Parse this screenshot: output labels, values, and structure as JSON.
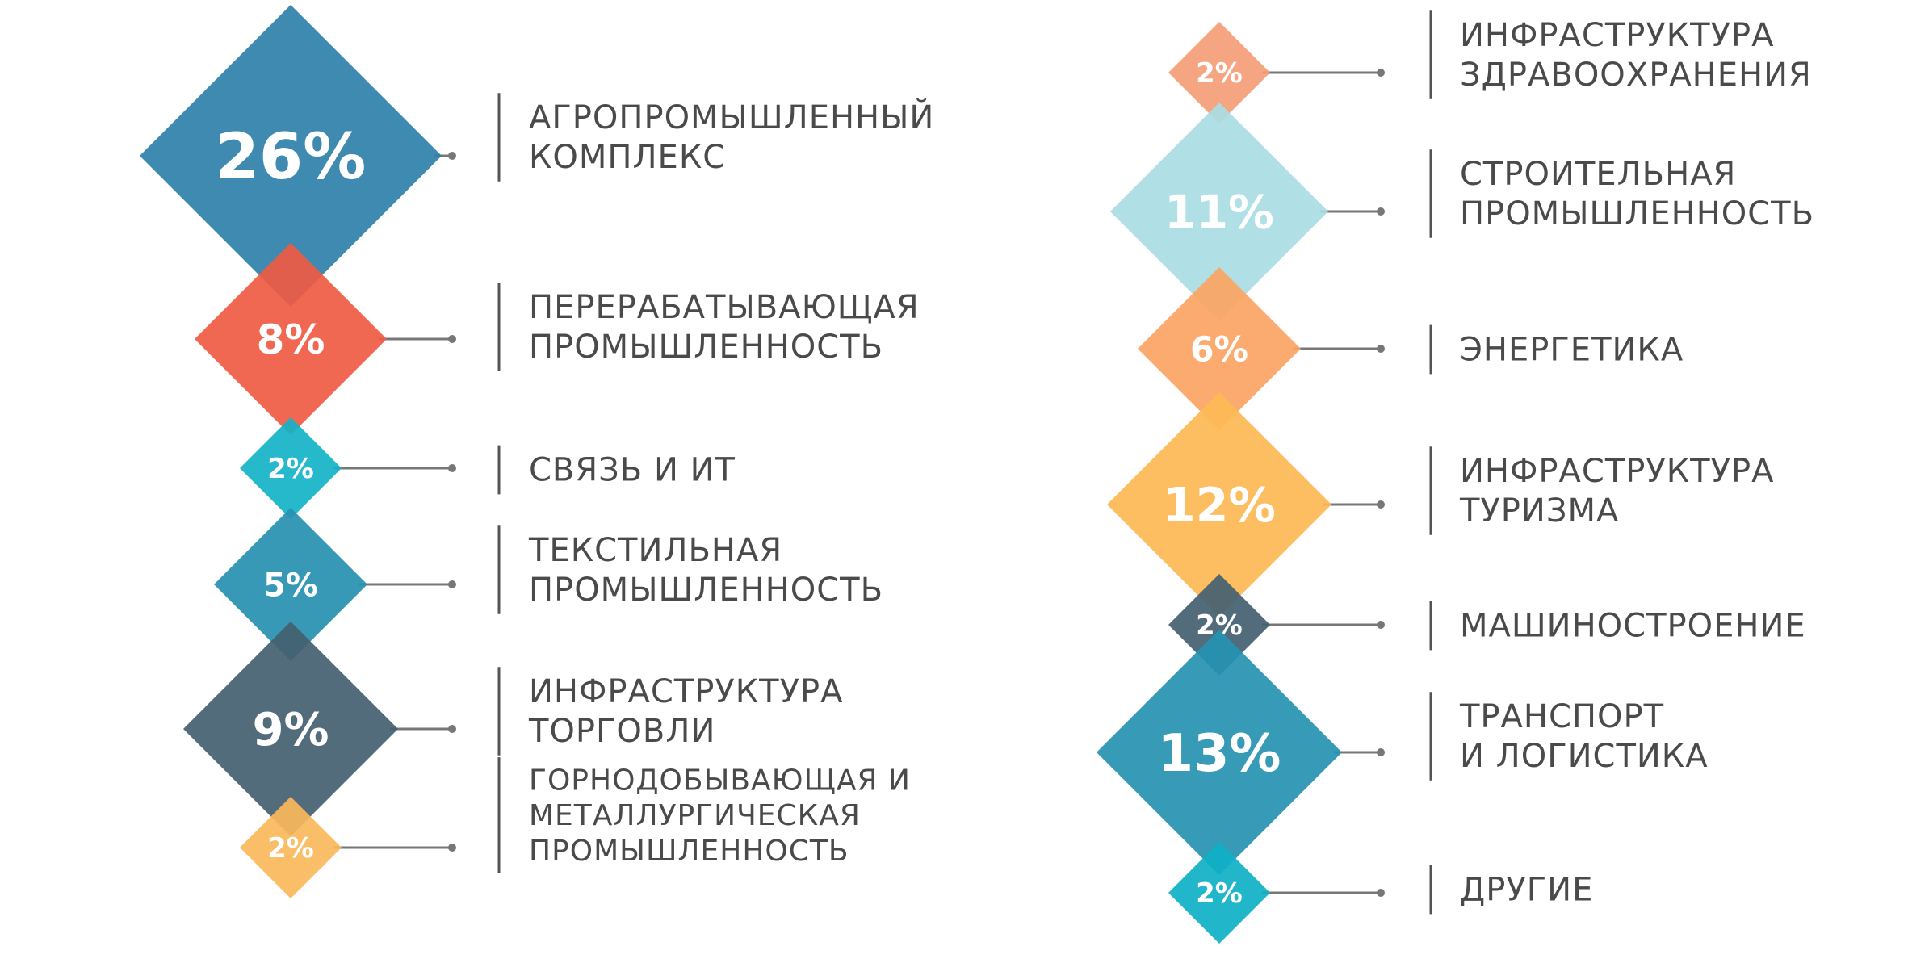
{
  "chart_data": {
    "type": "diamond-infographic",
    "unit": "%",
    "columns": [
      {
        "items": [
          {
            "value": 26,
            "label_lines": [
              "АГРОПРОМЫШЛЕННЫЙ",
              "КОМПЛЕКС"
            ],
            "color": "#2f80a9"
          },
          {
            "value": 8,
            "label_lines": [
              "ПЕРЕРАБАТЫВАЮЩАЯ",
              "ПРОМЫШЛЕННОСТЬ"
            ],
            "color": "#ef5a43"
          },
          {
            "value": 2,
            "label_lines": [
              "СВЯЗЬ И ИТ"
            ],
            "color": "#14b3c8"
          },
          {
            "value": 5,
            "label_lines": [
              "ТЕКСТИЛЬНАЯ",
              "ПРОМЫШЛЕННОСТЬ"
            ],
            "color": "#2690b0"
          },
          {
            "value": 9,
            "label_lines": [
              "ИНФРАСТРУКТУРА",
              "ТОРГОВЛИ"
            ],
            "color": "#435f70"
          },
          {
            "value": 2,
            "label_lines": [
              "ГОРНОДОБЫВАЮЩАЯ И",
              "МЕТАЛЛУРГИЧЕСКАЯ",
              "ПРОМЫШЛЕННОСТЬ"
            ],
            "color": "#fbb85b"
          }
        ]
      },
      {
        "items": [
          {
            "value": 2,
            "label_lines": [
              "ИНФРАСТРУКТУРА",
              "ЗДРАВООХРАНЕНИЯ"
            ],
            "color": "#f59d77"
          },
          {
            "value": 11,
            "label_lines": [
              "СТРОИТЕЛЬНАЯ",
              "ПРОМЫШЛЕННОСТЬ"
            ],
            "color": "#a9dde4"
          },
          {
            "value": 6,
            "label_lines": [
              "ЭНЕРГЕТИКА"
            ],
            "color": "#fba463"
          },
          {
            "value": 12,
            "label_lines": [
              "ИНФРАСТРУКТУРА",
              "ТУРИЗМА"
            ],
            "color": "#fdb955"
          },
          {
            "value": 2,
            "label_lines": [
              "МАШИНОСТРОЕНИЕ"
            ],
            "color": "#435f70"
          },
          {
            "value": 13,
            "label_lines": [
              "ТРАНСПОРТ",
              "И ЛОГИСТИКА"
            ],
            "color": "#2692b2"
          },
          {
            "value": 2,
            "label_lines": [
              "ДРУГИЕ"
            ],
            "color": "#0fb0c6"
          }
        ]
      }
    ],
    "colors": {
      "label_text": "#4a4a4a",
      "divider": "#555555",
      "connector": "#777777",
      "value_text": "#ffffff"
    }
  }
}
